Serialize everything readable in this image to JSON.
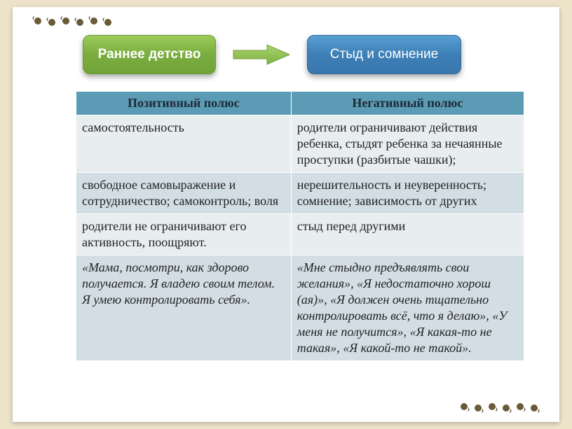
{
  "header": {
    "left_pill": {
      "text": "Раннее детство",
      "bg": "#7aad3f"
    },
    "right_pill": {
      "text": "Стыд и сомнение",
      "bg": "#3d7fb6"
    },
    "arrow_color": "#8fbc4f"
  },
  "table": {
    "header": {
      "left": "Позитивный полюс",
      "right": "Негативный полюс",
      "bg": "#5b9bb5"
    },
    "rows": [
      {
        "left": "самостоятельность",
        "right": "родители ограничивают действия ребенка, стыдят ребенка за нечаянные проступки (разбитые чашки);",
        "italic": false
      },
      {
        "left": "свободное самовыражение и сотрудничество; самоконтроль; воля",
        "right": "нерешительность и неуверенность; сомнение; зависимость от других",
        "italic": false
      },
      {
        "left": "родители не ограничивают его активность, поощряют.",
        "right": "стыд перед другими",
        "italic": false
      },
      {
        "left": " «Мама, посмотри, как здорово получается. Я владею своим телом. Я умею контролировать себя».",
        "right": "«Мне стыдно предъявлять свои желания», «Я недостаточно хорош (ая)», «Я должен очень тщательно контролировать всё, что я делаю», «У меня не получится», «Я какая-то не такая», «Я какой-то не такой».",
        "italic": true
      }
    ]
  },
  "decoration": {
    "swirl_color": "#6b5a38"
  }
}
